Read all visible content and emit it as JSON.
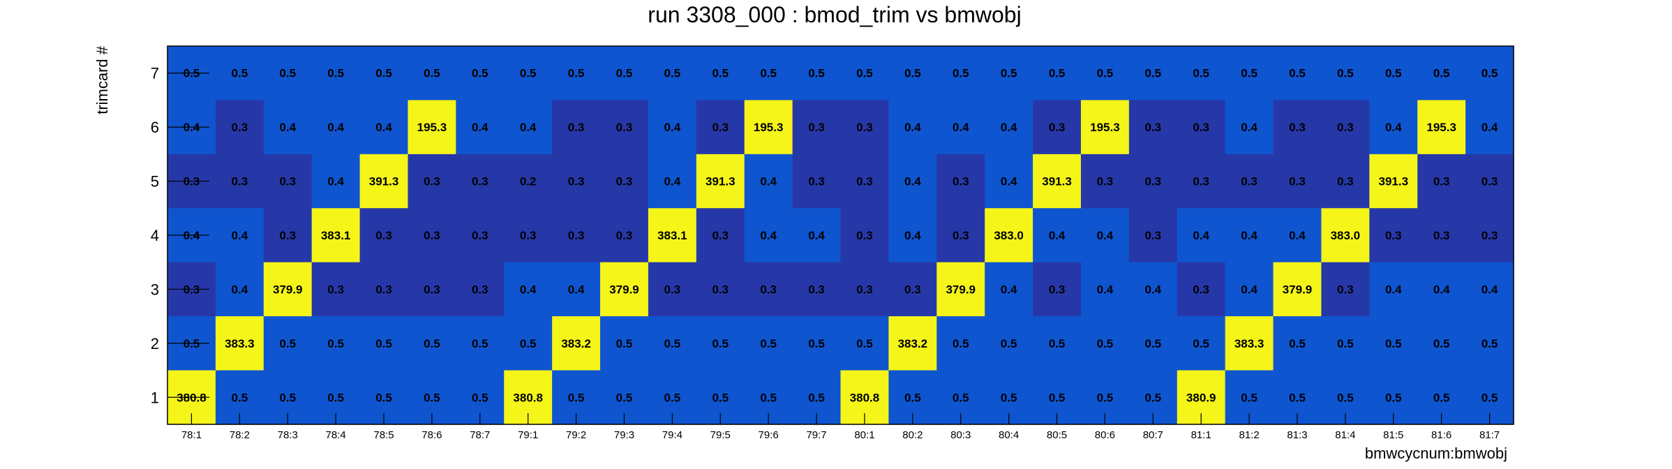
{
  "chart_data": {
    "type": "heatmap",
    "title": "run 3308_000 : bmod_trim vs bmwobj",
    "xlabel": "bmwcycnum:bmwobj",
    "ylabel": "trimcard #",
    "x_categories": [
      "78:1",
      "78:2",
      "78:3",
      "78:4",
      "78:5",
      "78:6",
      "78:7",
      "79:1",
      "79:2",
      "79:3",
      "79:4",
      "79:5",
      "79:6",
      "79:7",
      "80:1",
      "80:2",
      "80:3",
      "80:4",
      "80:5",
      "80:6",
      "80:7",
      "81:1",
      "81:2",
      "81:3",
      "81:4",
      "81:5",
      "81:6",
      "81:7"
    ],
    "y_categories": [
      "1",
      "2",
      "3",
      "4",
      "5",
      "6",
      "7"
    ],
    "rows": [
      {
        "y": "7",
        "values": [
          "0.5",
          "0.5",
          "0.5",
          "0.5",
          "0.5",
          "0.5",
          "0.5",
          "0.5",
          "0.5",
          "0.5",
          "0.5",
          "0.5",
          "0.5",
          "0.5",
          "0.5",
          "0.5",
          "0.5",
          "0.5",
          "0.5",
          "0.5",
          "0.5",
          "0.5",
          "0.5",
          "0.5",
          "0.5",
          "0.5",
          "0.5",
          "0.5"
        ]
      },
      {
        "y": "6",
        "values": [
          "0.4",
          "0.3",
          "0.4",
          "0.4",
          "0.4",
          "195.3",
          "0.4",
          "0.4",
          "0.3",
          "0.3",
          "0.4",
          "0.3",
          "195.3",
          "0.3",
          "0.3",
          "0.4",
          "0.4",
          "0.4",
          "0.3",
          "195.3",
          "0.3",
          "0.3",
          "0.4",
          "0.3",
          "0.3",
          "0.4",
          "195.3",
          "0.4"
        ]
      },
      {
        "y": "5",
        "values": [
          "0.3",
          "0.3",
          "0.3",
          "0.4",
          "391.3",
          "0.3",
          "0.3",
          "0.2",
          "0.3",
          "0.3",
          "0.4",
          "391.3",
          "0.4",
          "0.3",
          "0.3",
          "0.4",
          "0.3",
          "0.4",
          "391.3",
          "0.3",
          "0.3",
          "0.3",
          "0.3",
          "0.3",
          "0.3",
          "391.3",
          "0.3",
          "0.3"
        ]
      },
      {
        "y": "4",
        "values": [
          "0.4",
          "0.4",
          "0.3",
          "383.1",
          "0.3",
          "0.3",
          "0.3",
          "0.3",
          "0.3",
          "0.3",
          "383.1",
          "0.3",
          "0.4",
          "0.4",
          "0.3",
          "0.4",
          "0.3",
          "383.0",
          "0.4",
          "0.4",
          "0.3",
          "0.4",
          "0.4",
          "0.4",
          "383.0",
          "0.3",
          "0.3",
          "0.3"
        ]
      },
      {
        "y": "3",
        "values": [
          "0.3",
          "0.4",
          "379.9",
          "0.3",
          "0.3",
          "0.3",
          "0.3",
          "0.4",
          "0.4",
          "379.9",
          "0.3",
          "0.3",
          "0.3",
          "0.3",
          "0.3",
          "0.3",
          "379.9",
          "0.4",
          "0.3",
          "0.4",
          "0.4",
          "0.3",
          "0.4",
          "379.9",
          "0.3",
          "0.4",
          "0.4",
          "0.4"
        ]
      },
      {
        "y": "2",
        "values": [
          "0.5",
          "383.3",
          "0.5",
          "0.5",
          "0.5",
          "0.5",
          "0.5",
          "0.5",
          "383.2",
          "0.5",
          "0.5",
          "0.5",
          "0.5",
          "0.5",
          "0.5",
          "383.2",
          "0.5",
          "0.5",
          "0.5",
          "0.5",
          "0.5",
          "0.5",
          "383.3",
          "0.5",
          "0.5",
          "0.5",
          "0.5",
          "0.5"
        ]
      },
      {
        "y": "1",
        "values": [
          "380.8",
          "0.5",
          "0.5",
          "0.5",
          "0.5",
          "0.5",
          "0.5",
          "380.8",
          "0.5",
          "0.5",
          "0.5",
          "0.5",
          "0.5",
          "0.5",
          "380.8",
          "0.5",
          "0.5",
          "0.5",
          "0.5",
          "0.5",
          "0.5",
          "380.9",
          "0.5",
          "0.5",
          "0.5",
          "0.5",
          "0.5",
          "0.5"
        ]
      }
    ],
    "colors": {
      "high": "#f5f51a",
      "mid": "#0f55d0",
      "low": "#2638a8"
    }
  }
}
